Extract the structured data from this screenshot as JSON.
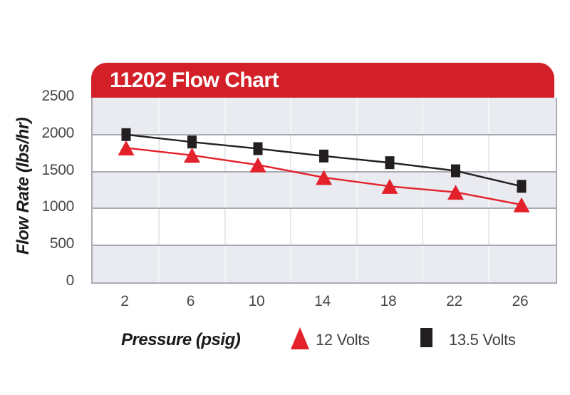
{
  "banner": {
    "title": "11202 Flow Chart"
  },
  "colors": {
    "banner_red": "#D32028",
    "series_12v_red": "#E3212B",
    "series_13v_black": "#231F20",
    "band_gray": "#E9EBF1",
    "grid_major": "#A9ACB2",
    "tick_text": "#48484B"
  },
  "chart_data": {
    "type": "line",
    "title": "11202 Flow Chart",
    "xlabel": "Pressure (psig)",
    "ylabel": "Flow Rate (lbs/hr)",
    "x": [
      2,
      6,
      10,
      14,
      18,
      22,
      26
    ],
    "x_tick_labels": [
      "2",
      "6",
      "10",
      "14",
      "18",
      "22",
      "26"
    ],
    "y_ticks": [
      2500,
      2000,
      1500,
      1000,
      500,
      0
    ],
    "xlim": [
      0,
      28
    ],
    "ylim": [
      0,
      2500
    ],
    "grid": {
      "horizontal_every": 500,
      "vertical_minor_every": 4,
      "band_shading": true
    },
    "legend_position": "bottom",
    "series": [
      {
        "name": "12 Volts",
        "marker": "triangle",
        "color": "#E3212B",
        "values": [
          1820,
          1720,
          1590,
          1420,
          1300,
          1220,
          1050
        ]
      },
      {
        "name": "13.5 Volts",
        "marker": "square",
        "color": "#231F20",
        "values": [
          2000,
          1900,
          1810,
          1710,
          1620,
          1510,
          1300
        ]
      }
    ]
  }
}
